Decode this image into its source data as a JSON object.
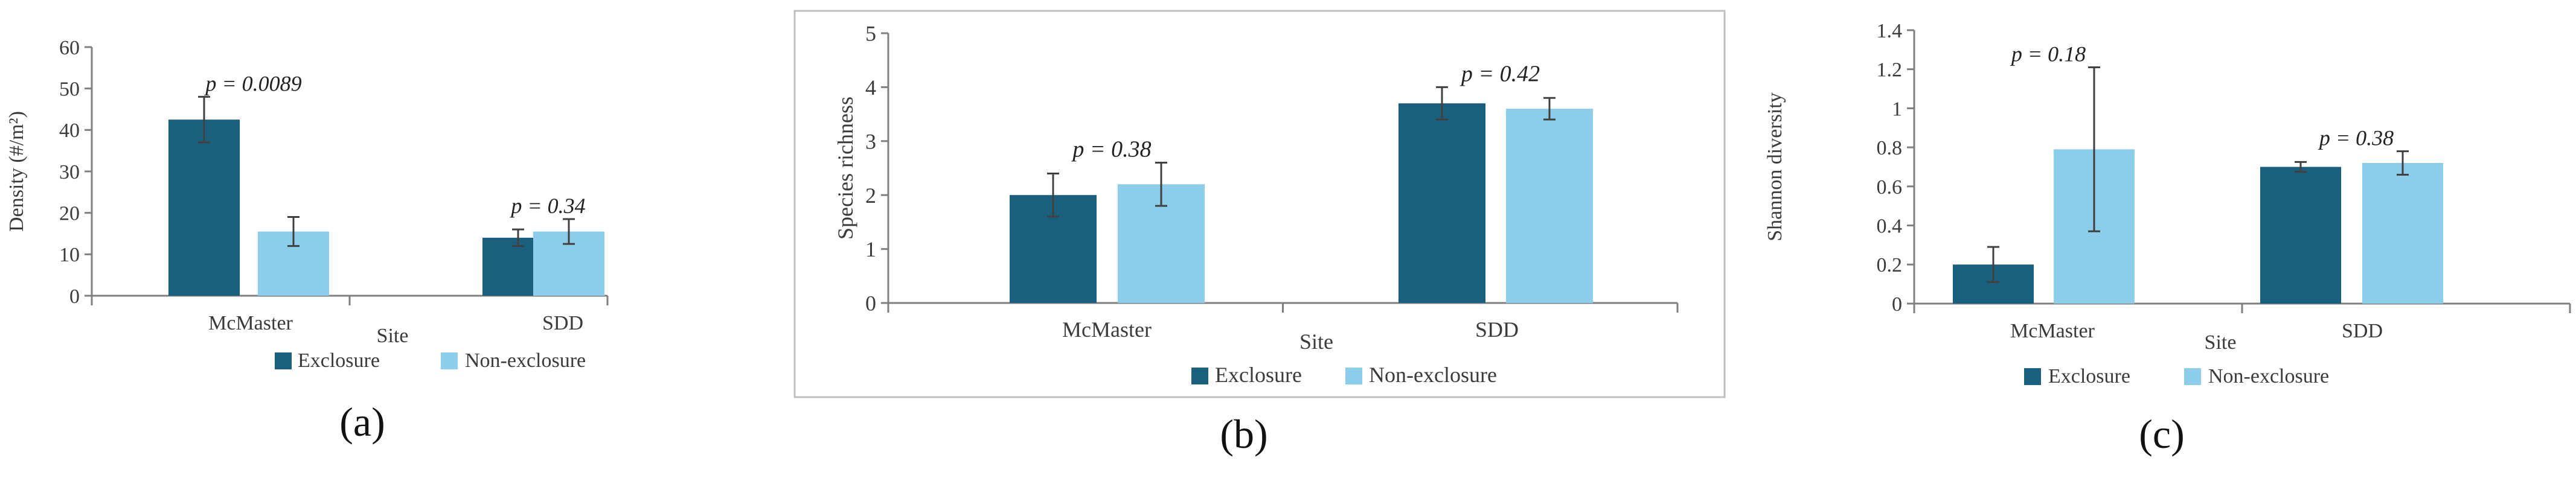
{
  "legend": {
    "exclosure": "Exclosure",
    "non_exclosure": "Non-exclosure"
  },
  "colors": {
    "exclosure": "#1b5f7e",
    "non_exclosure": "#8ccde9",
    "axis": "#7f7f7f",
    "text": "#3b3b3b",
    "error_bar": "#404040",
    "panel_border": "#bfbfbf"
  },
  "chart_data": [
    {
      "type": "bar",
      "panel_label": "(a)",
      "ylabel": "Density (#/m²)",
      "xlabel": "Site",
      "ylim": [
        0,
        60
      ],
      "ytick_labels": [
        "0",
        "10",
        "20",
        "30",
        "40",
        "50",
        "60"
      ],
      "categories": [
        "McMaster",
        "SDD"
      ],
      "series": [
        {
          "name": "Exclosure",
          "values": [
            42.5,
            14
          ],
          "errors": [
            5.5,
            2
          ]
        },
        {
          "name": "Non-exclosure",
          "values": [
            15.5,
            15.5
          ],
          "errors": [
            3.5,
            3
          ]
        }
      ],
      "annotations": [
        {
          "category": "McMaster",
          "text": "p = 0.0089"
        },
        {
          "category": "SDD",
          "text": "p = 0.34"
        }
      ],
      "legend_position": "bottom",
      "bordered": false
    },
    {
      "type": "bar",
      "panel_label": "(b)",
      "ylabel": "Species richness",
      "xlabel": "Site",
      "ylim": [
        0,
        5
      ],
      "ytick_labels": [
        "0",
        "1",
        "2",
        "3",
        "4",
        "5"
      ],
      "categories": [
        "McMaster",
        "SDD"
      ],
      "series": [
        {
          "name": "Exclosure",
          "values": [
            2.0,
            3.7
          ],
          "errors": [
            0.4,
            0.3
          ]
        },
        {
          "name": "Non-exclosure",
          "values": [
            2.2,
            3.6
          ],
          "errors": [
            0.4,
            0.2
          ]
        }
      ],
      "annotations": [
        {
          "category": "McMaster",
          "text": "p = 0.38"
        },
        {
          "category": "SDD",
          "text": "p = 0.42"
        }
      ],
      "legend_position": "bottom",
      "bordered": true
    },
    {
      "type": "bar",
      "panel_label": "(c)",
      "ylabel": "Shannon diversity",
      "xlabel": "Site",
      "ylim": [
        0,
        1.4
      ],
      "ytick_labels": [
        "0",
        "0.2",
        "0.4",
        "0.6",
        "0.8",
        "1",
        "1.2",
        "1.4"
      ],
      "categories": [
        "McMaster",
        "SDD"
      ],
      "series": [
        {
          "name": "Exclosure",
          "values": [
            0.2,
            0.7
          ],
          "errors": [
            0.09,
            0.025
          ]
        },
        {
          "name": "Non-exclosure",
          "values": [
            0.79,
            0.72
          ],
          "errors": [
            0.42,
            0.06
          ]
        }
      ],
      "annotations": [
        {
          "category": "McMaster",
          "text": "p = 0.18"
        },
        {
          "category": "SDD",
          "text": "p = 0.38"
        }
      ],
      "legend_position": "bottom",
      "bordered": false
    }
  ]
}
